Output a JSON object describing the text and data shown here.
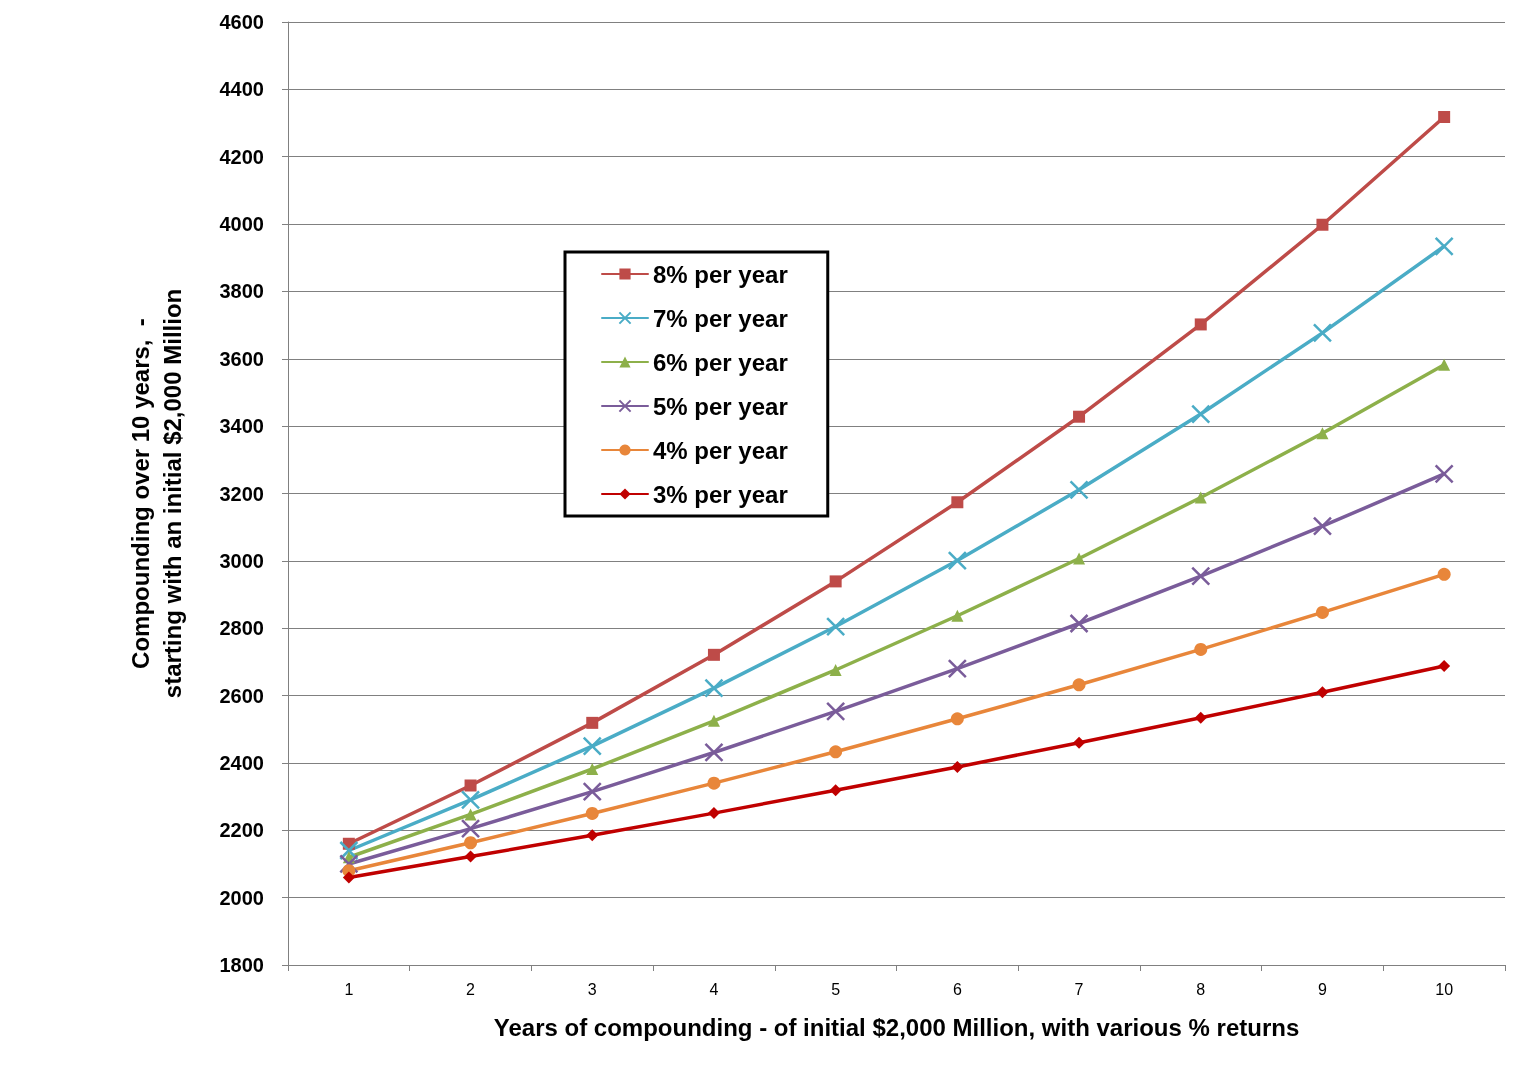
{
  "chart_data": {
    "type": "line",
    "xlabel": "Years of compounding - of initial $2,000 Million, with various % returns",
    "ylabel": "Compounding over 10 years,  -\nstarting with an initial $2,000 Million",
    "categories": [
      "1",
      "2",
      "3",
      "4",
      "5",
      "6",
      "7",
      "8",
      "9",
      "10"
    ],
    "ylim": [
      1800,
      4600
    ],
    "yticks": [
      1800,
      2000,
      2200,
      2400,
      2600,
      2800,
      3000,
      3200,
      3400,
      3600,
      3800,
      4000,
      4200,
      4400,
      4600
    ],
    "grid": "y",
    "legend": "top left",
    "line_style": "solid",
    "series": [
      {
        "name": "8% per year",
        "color": "#be4b48",
        "marker": "square",
        "values": [
          2160,
          2333,
          2519,
          2721,
          2939,
          3174,
          3428,
          3702,
          3998,
          4318
        ]
      },
      {
        "name": "7% per year",
        "color": "#4aacc6",
        "marker": "cross",
        "values": [
          2140,
          2290,
          2450,
          2622,
          2805,
          3001,
          3211,
          3436,
          3677,
          3934
        ]
      },
      {
        "name": "6% per year",
        "color": "#8db04a",
        "marker": "triangle",
        "values": [
          2120,
          2247,
          2382,
          2525,
          2676,
          2837,
          3007,
          3188,
          3379,
          3582
        ]
      },
      {
        "name": "5% per year",
        "color": "#7a5c9a",
        "marker": "cross",
        "values": [
          2100,
          2205,
          2315,
          2431,
          2553,
          2680,
          2814,
          2955,
          3103,
          3258
        ]
      },
      {
        "name": "4% per year",
        "color": "#e8863a",
        "marker": "circle",
        "values": [
          2080,
          2163,
          2250,
          2340,
          2433,
          2531,
          2632,
          2737,
          2847,
          2960
        ]
      },
      {
        "name": "3% per year",
        "color": "#c00000",
        "marker": "diamond",
        "values": [
          2060,
          2122,
          2185,
          2251,
          2319,
          2388,
          2460,
          2534,
          2610,
          2688
        ]
      }
    ]
  }
}
